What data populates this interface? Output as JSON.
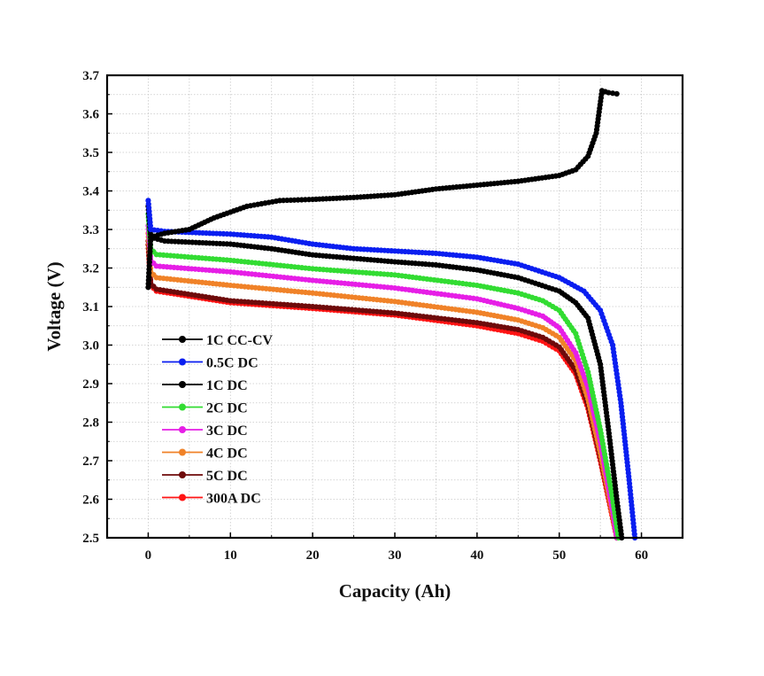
{
  "chart_data": {
    "type": "line",
    "title": "",
    "xlabel": "Capacity (Ah)",
    "ylabel": "Voltage (V)",
    "xlim": [
      -5,
      65
    ],
    "ylim": [
      2.5,
      3.7
    ],
    "xticks": [
      0,
      10,
      20,
      30,
      40,
      50,
      60
    ],
    "yticks": [
      2.5,
      2.6,
      2.7,
      2.8,
      2.9,
      3.0,
      3.1,
      3.2,
      3.3,
      3.4,
      3.5,
      3.6,
      3.7
    ],
    "xtick_labels": [
      "0",
      "10",
      "20",
      "30",
      "40",
      "50",
      "60"
    ],
    "ytick_labels": [
      "2.5",
      "2.6",
      "2.7",
      "2.8",
      "2.9",
      "3.0",
      "3.1",
      "3.2",
      "3.3",
      "3.4",
      "3.5",
      "3.6",
      "3.7"
    ],
    "grid": true,
    "legend_position": "lower-left",
    "series": [
      {
        "name": "1C CC-CV",
        "color": "#000000",
        "points": [
          [
            0,
            3.15
          ],
          [
            0.3,
            3.28
          ],
          [
            2,
            3.29
          ],
          [
            5,
            3.3
          ],
          [
            8,
            3.33
          ],
          [
            12,
            3.36
          ],
          [
            16,
            3.375
          ],
          [
            20,
            3.378
          ],
          [
            25,
            3.383
          ],
          [
            30,
            3.39
          ],
          [
            35,
            3.405
          ],
          [
            40,
            3.415
          ],
          [
            45,
            3.425
          ],
          [
            50,
            3.44
          ],
          [
            52,
            3.455
          ],
          [
            53.5,
            3.49
          ],
          [
            54.5,
            3.55
          ],
          [
            55.2,
            3.66
          ],
          [
            56,
            3.655
          ],
          [
            57,
            3.652
          ]
        ]
      },
      {
        "name": "0.5C DC",
        "color": "#0a1ef0",
        "points": [
          [
            0,
            3.375
          ],
          [
            0.3,
            3.3
          ],
          [
            2,
            3.295
          ],
          [
            10,
            3.288
          ],
          [
            15,
            3.28
          ],
          [
            20,
            3.262
          ],
          [
            25,
            3.25
          ],
          [
            30,
            3.244
          ],
          [
            35,
            3.238
          ],
          [
            40,
            3.228
          ],
          [
            45,
            3.21
          ],
          [
            50,
            3.175
          ],
          [
            53,
            3.14
          ],
          [
            55,
            3.09
          ],
          [
            56.5,
            3.0
          ],
          [
            57.5,
            2.85
          ],
          [
            58.5,
            2.65
          ],
          [
            59.2,
            2.5
          ]
        ]
      },
      {
        "name": "1C DC",
        "color": "#000000",
        "points": [
          [
            0,
            3.36
          ],
          [
            0.3,
            3.28
          ],
          [
            2,
            3.27
          ],
          [
            10,
            3.262
          ],
          [
            15,
            3.25
          ],
          [
            20,
            3.234
          ],
          [
            25,
            3.225
          ],
          [
            30,
            3.216
          ],
          [
            35,
            3.208
          ],
          [
            40,
            3.195
          ],
          [
            45,
            3.175
          ],
          [
            50,
            3.14
          ],
          [
            52,
            3.11
          ],
          [
            53.5,
            3.07
          ],
          [
            55,
            2.95
          ],
          [
            56,
            2.78
          ],
          [
            57,
            2.6
          ],
          [
            57.6,
            2.5
          ]
        ]
      },
      {
        "name": "2C DC",
        "color": "#32dc32",
        "points": [
          [
            0,
            3.34
          ],
          [
            0.3,
            3.25
          ],
          [
            1,
            3.235
          ],
          [
            10,
            3.22
          ],
          [
            20,
            3.198
          ],
          [
            30,
            3.182
          ],
          [
            40,
            3.155
          ],
          [
            45,
            3.135
          ],
          [
            48,
            3.115
          ],
          [
            50,
            3.09
          ],
          [
            52,
            3.03
          ],
          [
            53.5,
            2.93
          ],
          [
            55,
            2.78
          ],
          [
            56.5,
            2.6
          ],
          [
            57.2,
            2.5
          ]
        ]
      },
      {
        "name": "3C DC",
        "color": "#e61ee6",
        "points": [
          [
            0,
            3.31
          ],
          [
            0.3,
            3.22
          ],
          [
            1,
            3.205
          ],
          [
            10,
            3.19
          ],
          [
            20,
            3.168
          ],
          [
            30,
            3.148
          ],
          [
            40,
            3.12
          ],
          [
            45,
            3.095
          ],
          [
            48,
            3.075
          ],
          [
            50,
            3.045
          ],
          [
            52,
            2.98
          ],
          [
            53.5,
            2.89
          ],
          [
            55,
            2.75
          ],
          [
            56.5,
            2.57
          ],
          [
            57,
            2.5
          ]
        ]
      },
      {
        "name": "4C DC",
        "color": "#f08228",
        "points": [
          [
            0,
            3.29
          ],
          [
            0.3,
            3.19
          ],
          [
            1,
            3.175
          ],
          [
            10,
            3.155
          ],
          [
            20,
            3.135
          ],
          [
            30,
            3.113
          ],
          [
            40,
            3.085
          ],
          [
            45,
            3.065
          ],
          [
            48,
            3.045
          ],
          [
            50,
            3.02
          ],
          [
            52,
            2.96
          ],
          [
            53.5,
            2.86
          ],
          [
            55,
            2.72
          ],
          [
            56.5,
            2.56
          ],
          [
            57,
            2.5
          ]
        ]
      },
      {
        "name": "5C DC",
        "color": "#6e0a0a",
        "points": [
          [
            0,
            3.27
          ],
          [
            0.3,
            3.16
          ],
          [
            1,
            3.145
          ],
          [
            10,
            3.115
          ],
          [
            20,
            3.1
          ],
          [
            30,
            3.083
          ],
          [
            40,
            3.058
          ],
          [
            45,
            3.04
          ],
          [
            48,
            3.02
          ],
          [
            50,
            2.995
          ],
          [
            52,
            2.935
          ],
          [
            53.5,
            2.845
          ],
          [
            55,
            2.71
          ],
          [
            56.5,
            2.56
          ],
          [
            57,
            2.5
          ]
        ]
      },
      {
        "name": "300A DC",
        "color": "#ff1414",
        "points": [
          [
            0,
            3.26
          ],
          [
            0.3,
            3.155
          ],
          [
            1,
            3.14
          ],
          [
            10,
            3.11
          ],
          [
            20,
            3.095
          ],
          [
            30,
            3.078
          ],
          [
            40,
            3.05
          ],
          [
            45,
            3.03
          ],
          [
            48,
            3.01
          ],
          [
            50,
            2.985
          ],
          [
            52,
            2.925
          ],
          [
            53.5,
            2.835
          ],
          [
            55,
            2.7
          ],
          [
            56.5,
            2.55
          ],
          [
            57,
            2.5
          ]
        ]
      }
    ]
  }
}
